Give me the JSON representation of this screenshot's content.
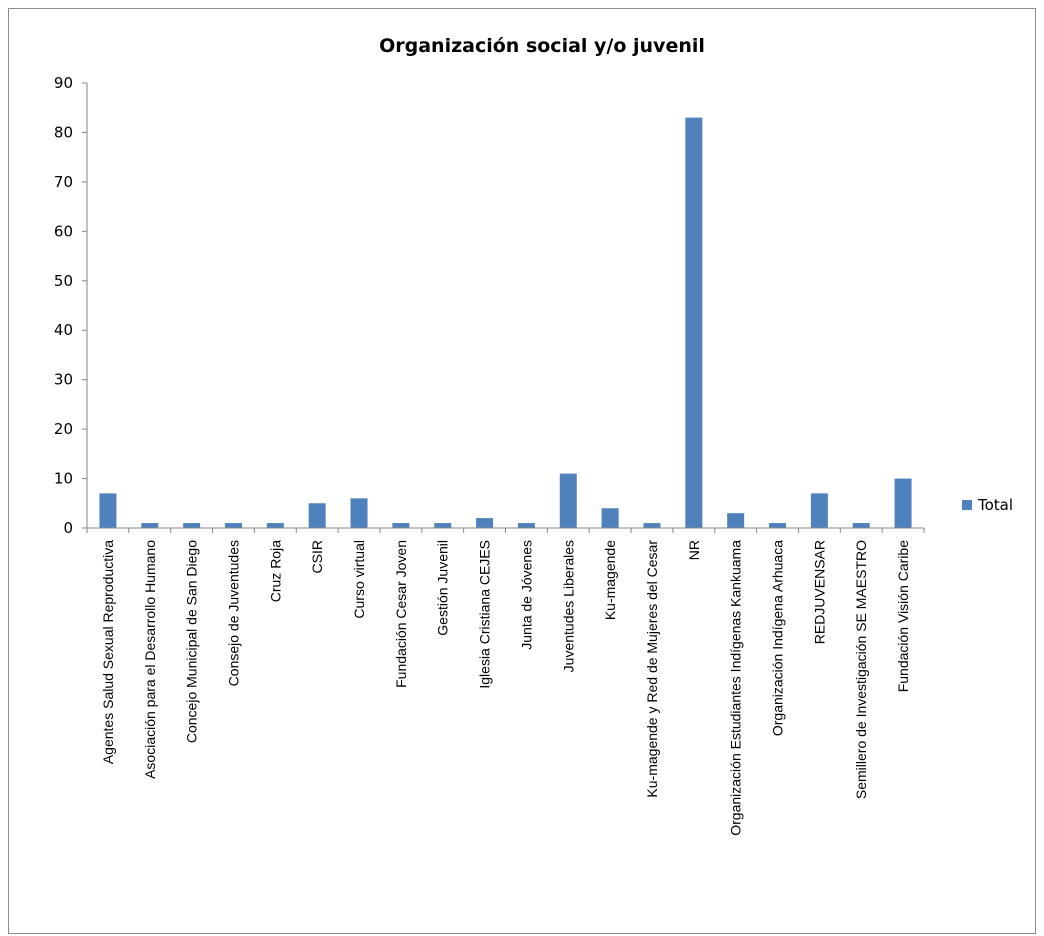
{
  "chart_data": {
    "type": "bar",
    "title": "Organización social y/o juvenil",
    "xlabel": "",
    "ylabel": "",
    "ylim": [
      0,
      90
    ],
    "yticks": [
      0,
      10,
      20,
      30,
      40,
      50,
      60,
      70,
      80,
      90
    ],
    "grid": false,
    "legend_position": "right",
    "categories": [
      "Agentes Salud Sexual Reproductiva",
      "Asociación para el Desarrollo Humano",
      "Concejo Municipal de San Diego",
      "Consejo de Juventudes",
      "Cruz Roja",
      "CSIR",
      "Curso virtual",
      "Fundación Cesar Joven",
      "Gestión Juvenil",
      "Iglesia Cristiana CEJES",
      "Junta de Jóvenes",
      "Juventudes Liberales",
      "Ku-magende",
      "Ku-magende y Red de Mujeres del Cesar",
      "NR",
      "Organización Estudiantes Indígenas Kankuama",
      "Organización Indígena Arhuaca",
      "REDJUVENSAR",
      "Semillero de Investigación SE MAESTRO",
      "Fundación Visión Caribe"
    ],
    "series": [
      {
        "name": "Total",
        "color": "#4f81bd",
        "values": [
          7,
          1,
          1,
          1,
          1,
          5,
          6,
          1,
          1,
          2,
          1,
          11,
          4,
          1,
          83,
          3,
          1,
          7,
          1,
          10
        ]
      }
    ]
  }
}
